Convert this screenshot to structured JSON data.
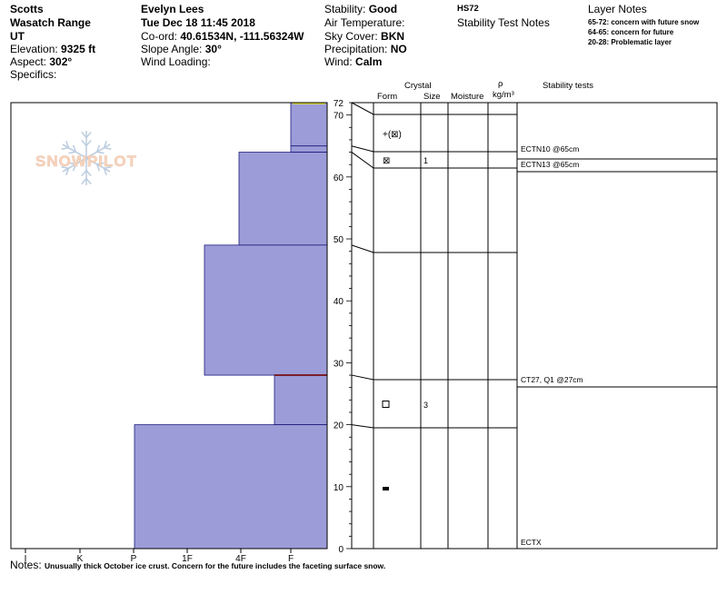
{
  "header": {
    "col1": {
      "range": "Scotts",
      "area": "Wasatch Range",
      "state": "UT",
      "elevation_label": "Elevation:",
      "elevation_value": "9325 ft",
      "aspect_label": "Aspect:",
      "aspect_value": "302°",
      "specifics_label": "Specifics:"
    },
    "col2": {
      "observer": "Evelyn Lees",
      "datetime": "Tue Dec 18 11:45 2018",
      "coord_label": "Co-ord:",
      "coord_value": "40.61534N, -111.56324W",
      "slope_label": "Slope Angle:",
      "slope_value": "30°",
      "wind_loading_label": "Wind Loading:"
    },
    "col3": {
      "stability_label": "Stability:",
      "stability_value": "Good",
      "air_temp_label": "Air Temperature:",
      "sky_label": "Sky Cover:",
      "sky_value": "BKN",
      "precip_label": "Precipitation:",
      "precip_value": "NO",
      "wind_label": "Wind:",
      "wind_value": "Calm"
    },
    "col4": {
      "hs": "HS72",
      "stability_notes": "Stability Test Notes"
    },
    "col5": {
      "title": "Layer Notes",
      "notes": [
        "65-72: concern with future snow",
        "64-65: concern for future",
        "20-28: Problematic layer"
      ]
    }
  },
  "watermark": {
    "text": "SNOWPILOT"
  },
  "table_headers": {
    "crystal": "Crystal",
    "form": "Form",
    "size": "Size",
    "moisture": "Moisture",
    "rho": "ρ",
    "density_unit": "kg/m³",
    "stability_tests": "Stability tests"
  },
  "notes": {
    "label": "Notes:",
    "text": "Unusually thick October ice crust.  Concern for the future includes the faceting surface snow."
  },
  "colors": {
    "hardness_fill": "#9c9cd8",
    "hardness_edge": "#1a1a7a",
    "problem_layer": "#7a1f2a",
    "surface_mark": "#e0e020"
  },
  "chart_data": {
    "type": "snow_profile",
    "depth_unit": "cm",
    "snow_height": 72,
    "depth_axis": {
      "range": [
        0,
        72
      ],
      "ticks": [
        0,
        10,
        20,
        30,
        40,
        50,
        60,
        70,
        72
      ]
    },
    "hardness_axis": {
      "categories": [
        "I",
        "K",
        "P",
        "1F",
        "4F",
        "F"
      ],
      "note": "hardness increases toward the left; bar widths measured from the right edge"
    },
    "hardness_layers": [
      {
        "top": 72,
        "bottom": 65,
        "hardness": "F"
      },
      {
        "top": 65,
        "bottom": 64,
        "hardness": "F"
      },
      {
        "top": 64,
        "bottom": 49,
        "hardness": "4F"
      },
      {
        "top": 49,
        "bottom": 28,
        "hardness": "1F+"
      },
      {
        "top": 28,
        "bottom": 20,
        "hardness": "F+"
      },
      {
        "top": 20,
        "bottom": 0,
        "hardness": "P"
      }
    ],
    "hardness_layers_right_fraction": [
      0.0,
      0.0,
      0.0,
      0.0,
      0.0,
      0.0
    ],
    "hardness_levels": {
      "F": 0.72,
      "4F": 1.72,
      "1F+": 2.37,
      "F+": 1.0,
      "P": 3.64
    },
    "problem_layer_depth": 28,
    "layer_boundaries": [
      72,
      65,
      64,
      49,
      28,
      20,
      0
    ],
    "crystals": [
      {
        "depth": 69,
        "form": "+(⊠)",
        "size": ""
      },
      {
        "depth": 64.5,
        "form": "⊠",
        "size": "1"
      },
      {
        "depth": 24,
        "form": "□",
        "size": "3"
      },
      {
        "depth": 10,
        "form": "■",
        "size": ""
      }
    ],
    "stability_tests": [
      {
        "depth": 65,
        "label": "ECTN10 @65cm"
      },
      {
        "depth": 64,
        "label": "ECTN13 @65cm"
      },
      {
        "depth": 27,
        "label": "CT27, Q1 @27cm"
      },
      {
        "depth": 0,
        "label": "ECTX"
      }
    ]
  }
}
